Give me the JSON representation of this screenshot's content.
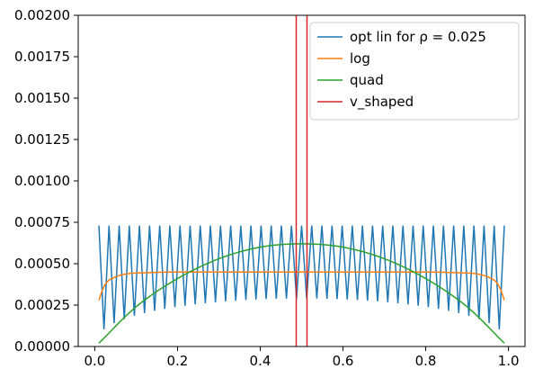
{
  "chart_data": {
    "type": "line",
    "title": "",
    "xlabel": "",
    "ylabel": "",
    "xlim": [
      -0.04,
      1.04
    ],
    "ylim": [
      0,
      0.002
    ],
    "grid": false,
    "legend_position": "top-right",
    "x_ticks": [
      0.0,
      0.2,
      0.4,
      0.6,
      0.8,
      1.0
    ],
    "x_tick_labels": [
      "0.0",
      "0.2",
      "0.4",
      "0.6",
      "0.8",
      "1.0"
    ],
    "y_ticks": [
      0,
      0.00025,
      0.0005,
      0.00075,
      0.001,
      0.00125,
      0.0015,
      0.00175,
      0.002
    ],
    "y_tick_labels": [
      "0.00000",
      "0.00025",
      "0.00050",
      "0.00075",
      "0.00100",
      "0.00125",
      "0.00150",
      "0.00175",
      "0.00200"
    ],
    "series": [
      {
        "name": "opt lin for ρ = 0.025",
        "color": "#1f77b4",
        "style": "oscillating",
        "x_range": [
          0.01,
          0.99
        ],
        "cycles": 40,
        "max": 0.00073,
        "min_edge": 5e-05,
        "min_center": 0.00029
      },
      {
        "name": "log",
        "color": "#ff7f0e",
        "x": [
          0.01,
          0.02,
          0.03,
          0.05,
          0.08,
          0.12,
          0.2,
          0.3,
          0.4,
          0.5,
          0.6,
          0.7,
          0.8,
          0.88,
          0.92,
          0.95,
          0.97,
          0.98,
          0.99
        ],
        "y": [
          0.00028,
          0.00035,
          0.00039,
          0.00042,
          0.00044,
          0.000445,
          0.00045,
          0.00045,
          0.00045,
          0.00045,
          0.00045,
          0.00045,
          0.00045,
          0.000445,
          0.00044,
          0.00042,
          0.00039,
          0.00035,
          0.00028
        ]
      },
      {
        "name": "quad",
        "color": "#2ca02c",
        "x": [
          0.01,
          0.1,
          0.2,
          0.3,
          0.4,
          0.5,
          0.6,
          0.7,
          0.8,
          0.9,
          0.99
        ],
        "y": [
          2e-05,
          0.00024,
          0.00041,
          0.00053,
          0.0006,
          0.00062,
          0.0006,
          0.00053,
          0.00041,
          0.00024,
          2e-05
        ]
      },
      {
        "name": "v_shaped",
        "color": "#d62728",
        "vertical_lines": [
          0.487,
          0.513
        ]
      }
    ]
  }
}
